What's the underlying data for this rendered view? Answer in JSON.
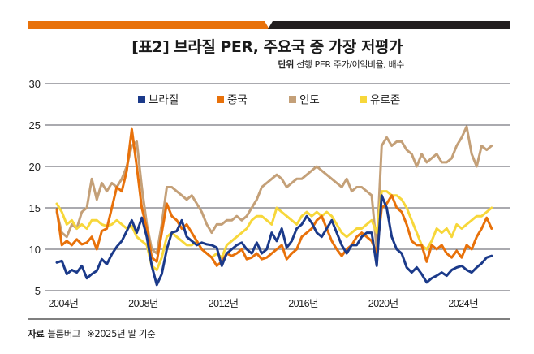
{
  "header": {
    "title": "[표2] 브라질 PER, 주요국 중 가장 저평가",
    "unit_label": "단위",
    "unit_text": "선행 PER 주가/이익비율, 배수",
    "bar_colors": {
      "left": "#e8710a",
      "right": "#231f20"
    }
  },
  "footer": {
    "source_label": "자료",
    "source_text": "블룸버그",
    "note": "※2025년 말 기준"
  },
  "chart_data": {
    "type": "line",
    "title": "[표2] 브라질 PER, 주요국 중 가장 저평가",
    "xlabel": "",
    "ylabel": "선행 PER 주가/이익비율, 배수",
    "ylim": [
      5,
      30
    ],
    "xlim": [
      2004,
      2026
    ],
    "yticks": [
      5,
      10,
      15,
      20,
      25,
      30
    ],
    "xticks": [
      {
        "value": 2004,
        "label": "2004년"
      },
      {
        "value": 2008,
        "label": "2008년"
      },
      {
        "value": 2012,
        "label": "2012년"
      },
      {
        "value": 2016,
        "label": "2016년"
      },
      {
        "value": 2020,
        "label": "2020년"
      },
      {
        "value": 2024,
        "label": "2024년"
      }
    ],
    "grid": true,
    "legend": "top-center",
    "x": [
      2004.0,
      2004.25,
      2004.5,
      2004.75,
      2005.0,
      2005.25,
      2005.5,
      2005.75,
      2006.0,
      2006.25,
      2006.5,
      2006.75,
      2007.0,
      2007.25,
      2007.5,
      2007.75,
      2008.0,
      2008.25,
      2008.5,
      2008.75,
      2009.0,
      2009.25,
      2009.5,
      2009.75,
      2010.0,
      2010.25,
      2010.5,
      2010.75,
      2011.0,
      2011.25,
      2011.5,
      2011.75,
      2012.0,
      2012.25,
      2012.5,
      2012.75,
      2013.0,
      2013.25,
      2013.5,
      2013.75,
      2014.0,
      2014.25,
      2014.5,
      2014.75,
      2015.0,
      2015.25,
      2015.5,
      2015.75,
      2016.0,
      2016.25,
      2016.5,
      2016.75,
      2017.0,
      2017.25,
      2017.5,
      2017.75,
      2018.0,
      2018.25,
      2018.5,
      2018.75,
      2019.0,
      2019.25,
      2019.5,
      2019.75,
      2020.0,
      2020.25,
      2020.5,
      2020.75,
      2021.0,
      2021.25,
      2021.5,
      2021.75,
      2022.0,
      2022.25,
      2022.5,
      2022.75,
      2023.0,
      2023.25,
      2023.5,
      2023.75,
      2024.0,
      2024.25,
      2024.5,
      2024.75,
      2025.0,
      2025.25,
      2025.5,
      2025.75
    ],
    "series": [
      {
        "name": "브라질",
        "color": "#1b3a8a",
        "values": [
          8.4,
          8.6,
          7.0,
          7.5,
          7.2,
          8.0,
          6.5,
          7.0,
          7.4,
          8.8,
          8.2,
          9.4,
          10.3,
          11.0,
          12.2,
          13.5,
          12.0,
          13.8,
          11.5,
          8.0,
          5.7,
          7.0,
          10.0,
          12.0,
          12.2,
          13.5,
          11.5,
          11.0,
          10.5,
          10.8,
          10.6,
          10.5,
          10.2,
          8.0,
          9.5,
          10.0,
          10.5,
          10.8,
          10.0,
          9.5,
          10.8,
          9.5,
          10.0,
          12.0,
          11.0,
          12.5,
          10.2,
          11.0,
          12.5,
          13.0,
          14.0,
          13.2,
          12.0,
          11.5,
          12.5,
          13.5,
          12.0,
          10.5,
          9.5,
          10.5,
          10.5,
          11.5,
          12.0,
          12.0,
          8.0,
          16.5,
          15.0,
          11.5,
          10.0,
          9.5,
          7.8,
          7.2,
          7.8,
          7.0,
          6.0,
          6.5,
          6.8,
          7.2,
          6.8,
          7.5,
          7.8,
          8.0,
          7.5,
          7.2,
          7.8,
          8.3,
          9.0,
          9.2
        ]
      },
      {
        "name": "중국",
        "color": "#e8710a",
        "values": [
          14.8,
          10.5,
          11.0,
          10.5,
          11.2,
          10.6,
          10.8,
          11.5,
          10.0,
          12.2,
          12.5,
          15.0,
          17.5,
          17.0,
          19.5,
          24.5,
          20.0,
          15.0,
          12.5,
          9.0,
          8.5,
          12.0,
          15.5,
          14.0,
          13.5,
          12.5,
          13.0,
          12.0,
          11.0,
          10.0,
          9.5,
          9.0,
          8.0,
          8.5,
          9.5,
          9.2,
          9.5,
          10.0,
          8.8,
          9.0,
          9.5,
          8.8,
          9.0,
          9.5,
          10.0,
          10.5,
          8.8,
          9.5,
          10.0,
          11.5,
          12.0,
          12.5,
          13.5,
          14.0,
          12.5,
          11.0,
          10.0,
          9.2,
          10.0,
          10.5,
          11.5,
          12.0,
          11.5,
          11.0,
          9.5,
          15.0,
          15.5,
          16.5,
          15.0,
          14.5,
          13.0,
          11.0,
          10.5,
          10.5,
          8.5,
          10.5,
          10.0,
          10.5,
          9.5,
          9.0,
          9.8,
          9.0,
          10.5,
          10.0,
          11.5,
          12.5,
          13.8,
          12.5
        ]
      },
      {
        "name": "인도",
        "color": "#c4a078",
        "values": [
          14.5,
          12.0,
          11.5,
          13.0,
          12.5,
          14.5,
          15.0,
          18.5,
          16.0,
          18.0,
          17.0,
          18.0,
          17.5,
          18.5,
          20.0,
          22.5,
          23.0,
          17.5,
          13.0,
          10.0,
          9.5,
          13.0,
          17.5,
          17.5,
          17.0,
          16.5,
          16.0,
          16.5,
          15.5,
          14.5,
          13.0,
          12.0,
          13.0,
          13.0,
          13.5,
          13.5,
          14.0,
          13.5,
          14.0,
          15.0,
          16.0,
          17.5,
          18.0,
          18.5,
          19.0,
          18.5,
          17.5,
          18.0,
          18.5,
          18.5,
          19.0,
          19.5,
          20.0,
          19.5,
          19.0,
          18.5,
          18.0,
          17.5,
          18.5,
          17.0,
          17.5,
          17.5,
          17.0,
          16.5,
          10.0,
          22.5,
          23.5,
          22.5,
          23.0,
          23.0,
          22.0,
          21.5,
          20.0,
          21.5,
          20.5,
          21.0,
          21.5,
          20.5,
          20.5,
          21.0,
          22.5,
          23.5,
          24.8,
          21.5,
          20.0,
          22.5,
          22.0,
          22.5
        ]
      },
      {
        "name": "유로존",
        "color": "#f7d73a",
        "values": [
          15.5,
          14.5,
          13.0,
          13.5,
          12.5,
          13.0,
          12.5,
          13.5,
          13.5,
          13.0,
          12.8,
          13.0,
          13.5,
          13.0,
          12.5,
          12.8,
          11.5,
          11.0,
          10.5,
          8.0,
          7.5,
          9.0,
          11.5,
          12.0,
          11.5,
          11.0,
          10.5,
          10.5,
          11.0,
          10.0,
          9.5,
          9.0,
          9.5,
          9.0,
          10.5,
          11.0,
          11.5,
          12.0,
          12.5,
          13.5,
          14.0,
          14.0,
          13.5,
          13.0,
          15.0,
          14.5,
          14.0,
          13.5,
          13.0,
          14.0,
          14.5,
          14.0,
          14.5,
          14.0,
          14.5,
          14.0,
          13.0,
          12.0,
          11.5,
          12.0,
          12.5,
          12.5,
          13.0,
          13.5,
          12.0,
          17.0,
          17.0,
          16.5,
          16.5,
          16.0,
          15.0,
          13.5,
          12.0,
          10.5,
          10.0,
          11.0,
          12.5,
          12.0,
          12.5,
          11.5,
          13.0,
          12.5,
          13.0,
          13.5,
          14.0,
          14.0,
          14.5,
          15.0
        ]
      }
    ]
  }
}
